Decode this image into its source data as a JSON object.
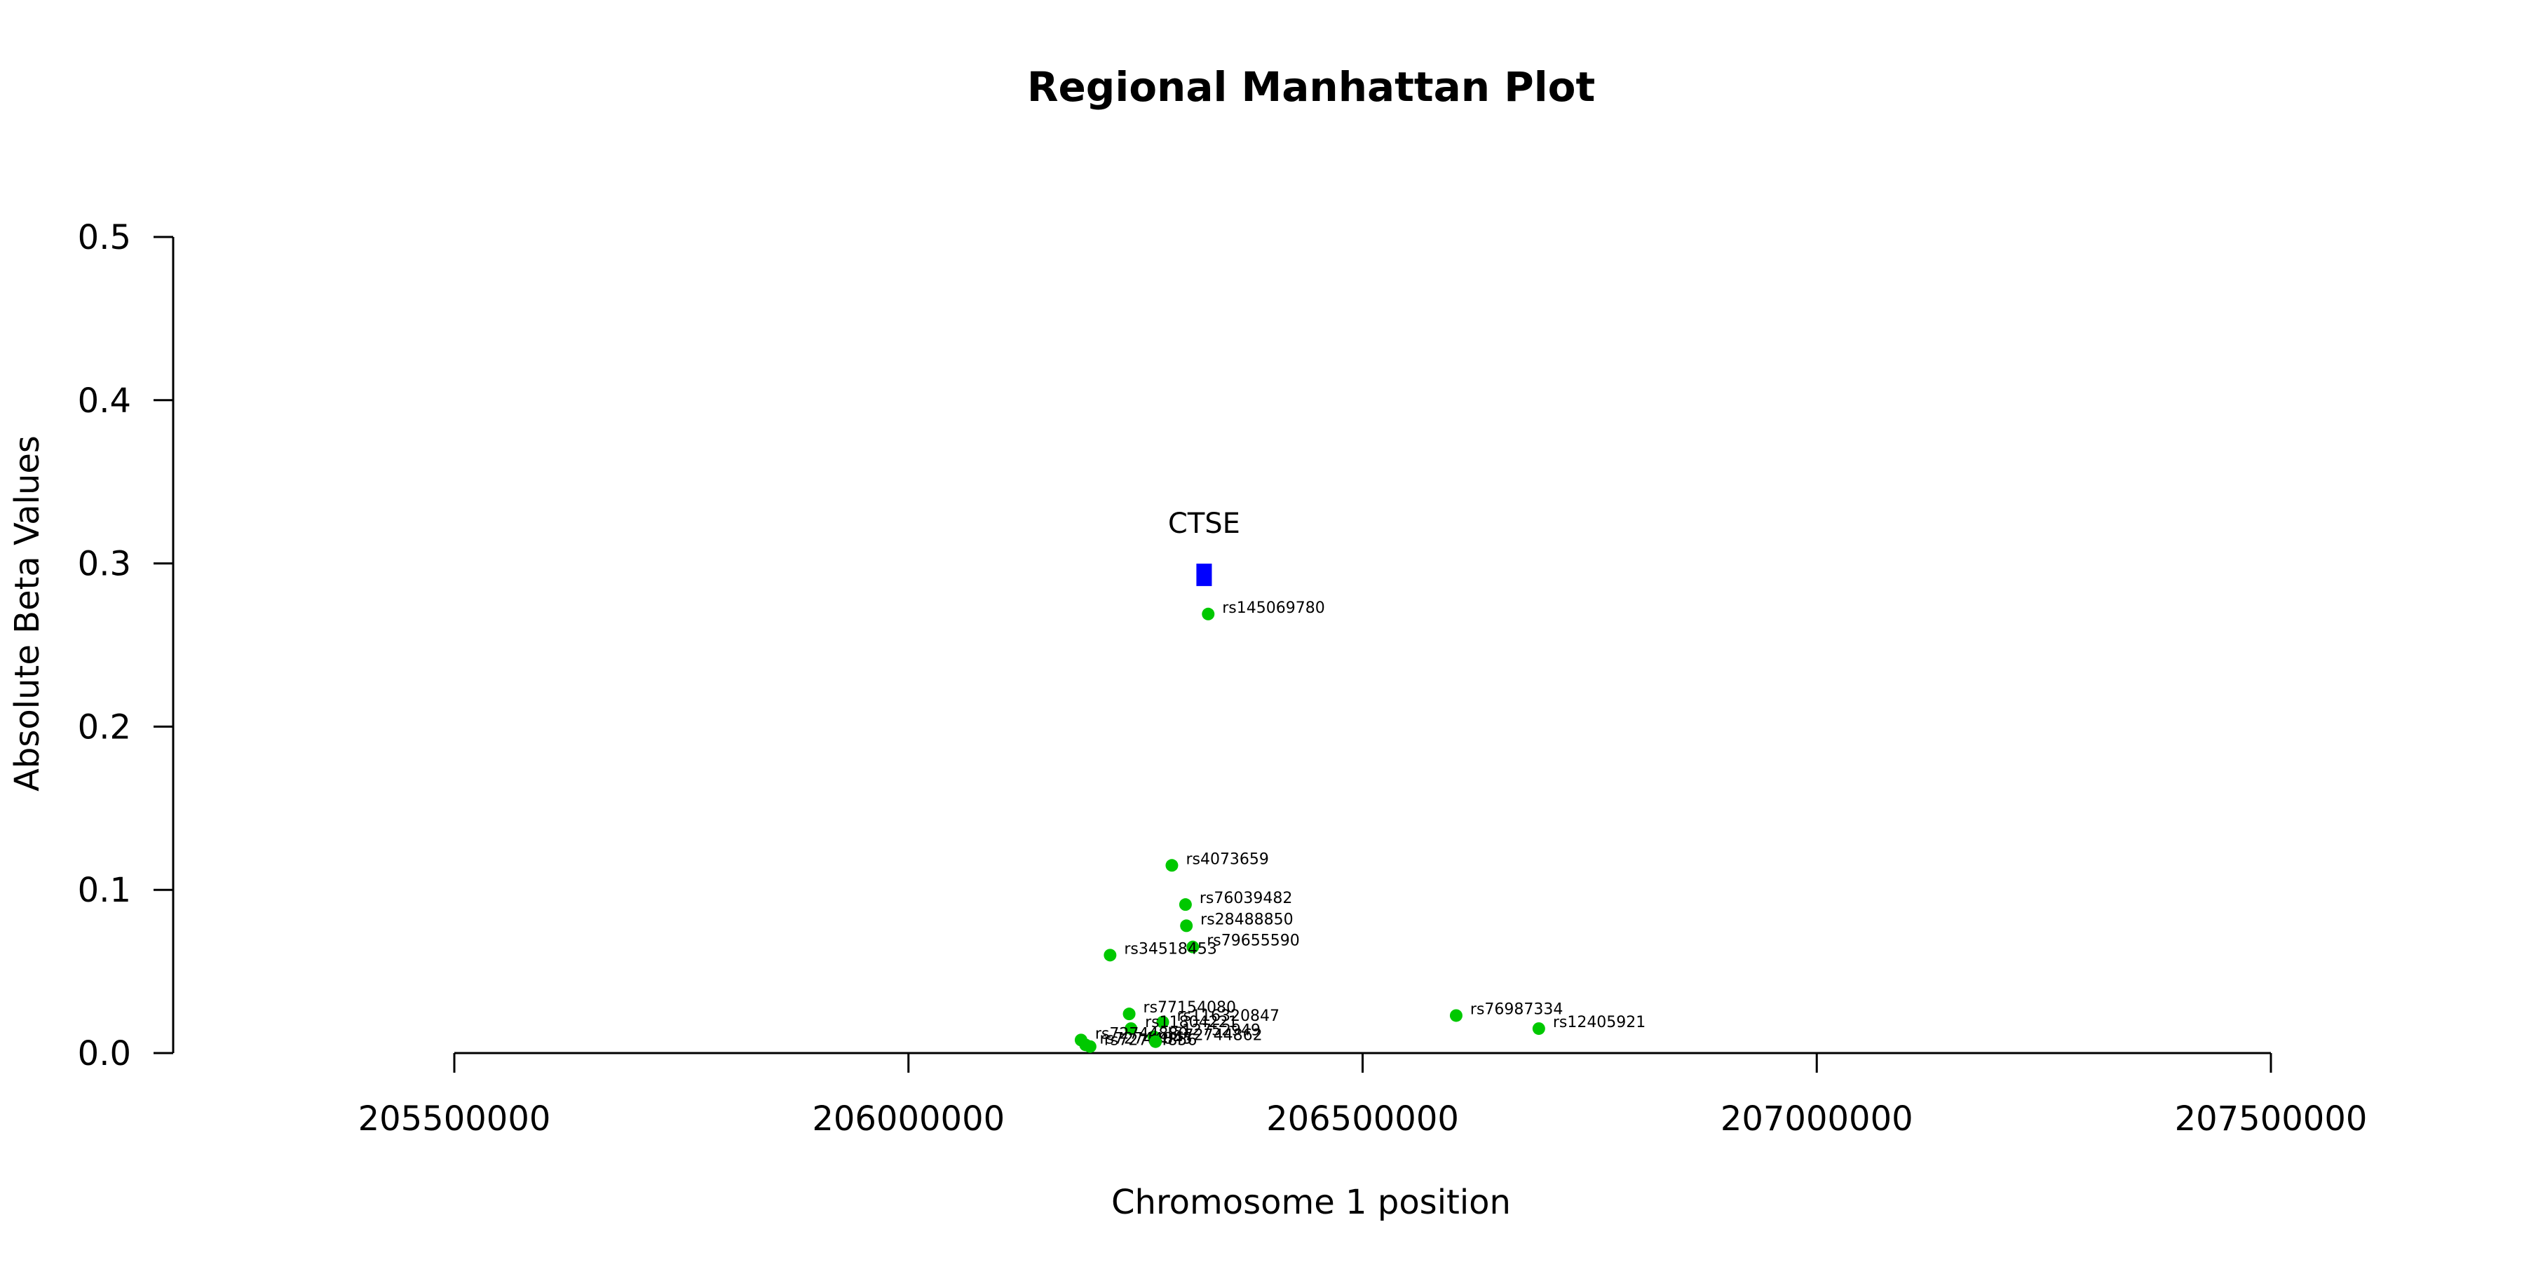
{
  "chart_data": {
    "type": "scatter",
    "title": "Regional Manhattan Plot",
    "xlabel": "Chromosome 1 position",
    "ylabel": "Absolute Beta Values",
    "xlim": [
      205500000,
      207500000
    ],
    "ylim": [
      0,
      0.5
    ],
    "x_ticks": [
      205500000,
      206000000,
      206500000,
      207000000,
      207500000
    ],
    "y_ticks": [
      0.0,
      0.1,
      0.2,
      0.3,
      0.4,
      0.5
    ],
    "x_tick_labels": [
      "205500000",
      "206000000",
      "206500000",
      "207000000",
      "207500000"
    ],
    "y_tick_labels": [
      "0.0",
      "0.1",
      "0.2",
      "0.3",
      "0.4",
      "0.5"
    ],
    "grid": false,
    "point_color": "#00c800",
    "gene_color": "#0000ff",
    "genes": [
      {
        "name": "CTSE",
        "start": 206317000,
        "end": 206334000,
        "y": 0.293
      }
    ],
    "points": [
      {
        "id": "rs145069780",
        "x": 206330000,
        "y": 0.269
      },
      {
        "id": "rs4073659",
        "x": 206290000,
        "y": 0.115
      },
      {
        "id": "rs76039482",
        "x": 206305000,
        "y": 0.091
      },
      {
        "id": "rs28488850",
        "x": 206306000,
        "y": 0.078
      },
      {
        "id": "rs79655590",
        "x": 206313000,
        "y": 0.065
      },
      {
        "id": "rs34518453",
        "x": 206222000,
        "y": 0.06
      },
      {
        "id": "rs77154080",
        "x": 206243000,
        "y": 0.024
      },
      {
        "id": "rs116320847",
        "x": 206280000,
        "y": 0.019
      },
      {
        "id": "rs11804221",
        "x": 206245000,
        "y": 0.015
      },
      {
        "id": "rs12752949",
        "x": 206270000,
        "y": 0.01
      },
      {
        "id": "rs72744880",
        "x": 206190000,
        "y": 0.008
      },
      {
        "id": "rs72744845",
        "x": 206195000,
        "y": 0.005
      },
      {
        "id": "rs72744856",
        "x": 206200000,
        "y": 0.004
      },
      {
        "id": "rs72744862",
        "x": 206272000,
        "y": 0.007
      },
      {
        "id": "rs76987334",
        "x": 206603000,
        "y": 0.023
      },
      {
        "id": "rs12405921",
        "x": 206694000,
        "y": 0.015
      }
    ]
  }
}
